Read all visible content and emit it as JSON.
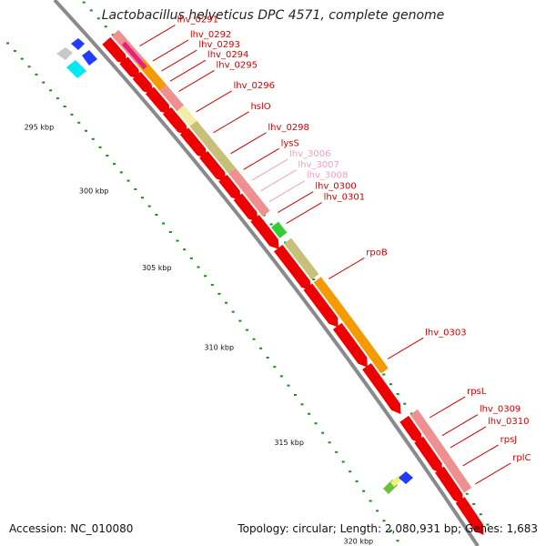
{
  "title": "Lactobacillus helveticus DPC 4571, complete genome",
  "footer": {
    "accession": "Accession: NC_010080",
    "summary": "Topology: circular; Length: 2,080,931 bp; Genes: 1,683"
  },
  "scale": {
    "ticks": [
      "295 kbp",
      "300 kbp",
      "305 kbp",
      "310 kbp",
      "315 kbp",
      "320 kbp"
    ]
  },
  "gene_labels": [
    {
      "text": "lhv_0291",
      "color": "#d40000"
    },
    {
      "text": "lhv_0292",
      "color": "#d40000"
    },
    {
      "text": "lhv_0293",
      "color": "#d40000"
    },
    {
      "text": "lhv_0294",
      "color": "#d40000"
    },
    {
      "text": "lhv_0295",
      "color": "#d40000"
    },
    {
      "text": "lhv_0296",
      "color": "#d40000"
    },
    {
      "text": "hslO",
      "color": "#d40000"
    },
    {
      "text": "lhv_0298",
      "color": "#d40000"
    },
    {
      "text": "lysS",
      "color": "#d40000"
    },
    {
      "text": "lhv_3006",
      "color": "#f0a0c0"
    },
    {
      "text": "lhv_3007",
      "color": "#f0a0c0"
    },
    {
      "text": "lhv_3008",
      "color": "#f0a0c0"
    },
    {
      "text": "lhv_0300",
      "color": "#d40000"
    },
    {
      "text": "lhv_0301",
      "color": "#d40000"
    },
    {
      "text": "rpoB",
      "color": "#d40000"
    },
    {
      "text": "lhv_0303",
      "color": "#d40000"
    },
    {
      "text": "rpsL",
      "color": "#d40000"
    },
    {
      "text": "lhv_0309",
      "color": "#d40000"
    },
    {
      "text": "lhv_0310",
      "color": "#d40000"
    },
    {
      "text": "rpsJ",
      "color": "#d40000"
    },
    {
      "text": "rplC",
      "color": "#d40000"
    }
  ],
  "colors": {
    "cds": "#ee0000",
    "cds_dark": "#b00000",
    "backbone": "#8a8a8a",
    "orange": "#f59a00",
    "olive": "#c8bf78",
    "salmon": "#f08f8f",
    "pink": "#e8207a",
    "yellow": "#f2eeaa",
    "dot_green": "#1c8a1c"
  }
}
